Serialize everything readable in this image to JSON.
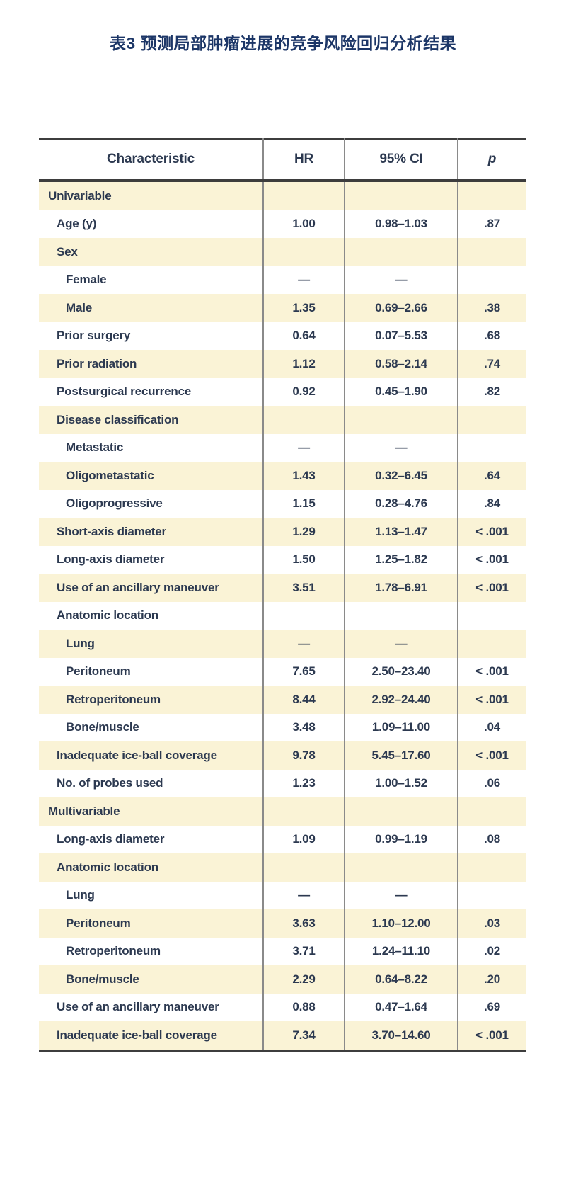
{
  "title": "表3 预测局部肿瘤进展的竞争风险回归分析结果",
  "colors": {
    "title_navy": "#1c3667",
    "body_text": "#2c3950",
    "row_cream": "#faf3d6",
    "rule_dark": "#3d3d3d",
    "rule_gray": "#8a8a8a"
  },
  "table": {
    "columns": {
      "characteristic": "Characteristic",
      "hr": "HR",
      "ci": "95% CI",
      "p": "p"
    },
    "rows": [
      {
        "label": "Univariable",
        "hr": "",
        "ci": "",
        "p": "",
        "indent": 0
      },
      {
        "label": "Age (y)",
        "hr": "1.00",
        "ci": "0.98–1.03",
        "p": ".87",
        "indent": 1
      },
      {
        "label": "Sex",
        "hr": "",
        "ci": "",
        "p": "",
        "indent": 1
      },
      {
        "label": "Female",
        "hr": "—",
        "ci": "—",
        "p": "",
        "indent": 2
      },
      {
        "label": "Male",
        "hr": "1.35",
        "ci": "0.69–2.66",
        "p": ".38",
        "indent": 2
      },
      {
        "label": "Prior surgery",
        "hr": "0.64",
        "ci": "0.07–5.53",
        "p": ".68",
        "indent": 1
      },
      {
        "label": "Prior radiation",
        "hr": "1.12",
        "ci": "0.58–2.14",
        "p": ".74",
        "indent": 1
      },
      {
        "label": "Postsurgical recurrence",
        "hr": "0.92",
        "ci": "0.45–1.90",
        "p": ".82",
        "indent": 1
      },
      {
        "label": "Disease classification",
        "hr": "",
        "ci": "",
        "p": "",
        "indent": 1
      },
      {
        "label": "Metastatic",
        "hr": "—",
        "ci": "—",
        "p": "",
        "indent": 2
      },
      {
        "label": "Oligometastatic",
        "hr": "1.43",
        "ci": "0.32–6.45",
        "p": ".64",
        "indent": 2
      },
      {
        "label": "Oligoprogressive",
        "hr": "1.15",
        "ci": "0.28–4.76",
        "p": ".84",
        "indent": 2
      },
      {
        "label": "Short-axis diameter",
        "hr": "1.29",
        "ci": "1.13–1.47",
        "p": "< .001",
        "indent": 1
      },
      {
        "label": "Long-axis diameter",
        "hr": "1.50",
        "ci": "1.25–1.82",
        "p": "< .001",
        "indent": 1
      },
      {
        "label": "Use of an ancillary maneuver",
        "hr": "3.51",
        "ci": "1.78–6.91",
        "p": "< .001",
        "indent": 1
      },
      {
        "label": "Anatomic location",
        "hr": "",
        "ci": "",
        "p": "",
        "indent": 1
      },
      {
        "label": "Lung",
        "hr": "—",
        "ci": "—",
        "p": "",
        "indent": 2
      },
      {
        "label": "Peritoneum",
        "hr": "7.65",
        "ci": "2.50–23.40",
        "p": "< .001",
        "indent": 2
      },
      {
        "label": "Retroperitoneum",
        "hr": "8.44",
        "ci": "2.92–24.40",
        "p": "< .001",
        "indent": 2
      },
      {
        "label": "Bone/muscle",
        "hr": "3.48",
        "ci": "1.09–11.00",
        "p": ".04",
        "indent": 2
      },
      {
        "label": "Inadequate ice-ball coverage",
        "hr": "9.78",
        "ci": "5.45–17.60",
        "p": "< .001",
        "indent": 1
      },
      {
        "label": "No. of probes used",
        "hr": "1.23",
        "ci": "1.00–1.52",
        "p": ".06",
        "indent": 1
      },
      {
        "label": "Multivariable",
        "hr": "",
        "ci": "",
        "p": "",
        "indent": 0
      },
      {
        "label": "Long-axis diameter",
        "hr": "1.09",
        "ci": "0.99–1.19",
        "p": ".08",
        "indent": 1
      },
      {
        "label": "Anatomic location",
        "hr": "",
        "ci": "",
        "p": "",
        "indent": 1
      },
      {
        "label": "Lung",
        "hr": "—",
        "ci": "—",
        "p": "",
        "indent": 2
      },
      {
        "label": "Peritoneum",
        "hr": "3.63",
        "ci": "1.10–12.00",
        "p": ".03",
        "indent": 2
      },
      {
        "label": "Retroperitoneum",
        "hr": "3.71",
        "ci": "1.24–11.10",
        "p": ".02",
        "indent": 2
      },
      {
        "label": "Bone/muscle",
        "hr": "2.29",
        "ci": "0.64–8.22",
        "p": ".20",
        "indent": 2
      },
      {
        "label": "Use of an ancillary maneuver",
        "hr": "0.88",
        "ci": "0.47–1.64",
        "p": ".69",
        "indent": 1
      },
      {
        "label": "Inadequate ice-ball coverage",
        "hr": "7.34",
        "ci": "3.70–14.60",
        "p": "< .001",
        "indent": 1
      }
    ]
  }
}
